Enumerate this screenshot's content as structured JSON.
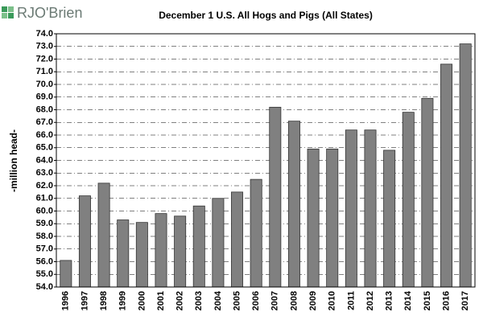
{
  "logo": "RJO'Brien",
  "chart_data": {
    "type": "bar",
    "title": "December 1 U.S. All Hogs and Pigs (All States)",
    "y_label": "-million head-",
    "categories": [
      "1996",
      "1997",
      "1998",
      "1999",
      "2000",
      "2001",
      "2002",
      "2003",
      "2004",
      "2005",
      "2006",
      "2007",
      "2008",
      "2009",
      "2010",
      "2011",
      "2012",
      "2013",
      "2014",
      "2015",
      "2016",
      "2017"
    ],
    "values": [
      56.1,
      61.2,
      62.2,
      59.3,
      59.1,
      59.8,
      59.6,
      60.4,
      61.0,
      61.5,
      62.5,
      68.2,
      67.1,
      64.9,
      64.9,
      66.4,
      66.4,
      64.8,
      67.8,
      68.9,
      71.6,
      73.2
    ],
    "color": "#808080",
    "ylim": [
      54,
      74
    ],
    "yticks": [
      {
        "value": 54,
        "label": "54.0"
      },
      {
        "value": 55,
        "label": "55.0"
      },
      {
        "value": 56,
        "label": "56.0"
      },
      {
        "value": 57,
        "label": "57.0"
      },
      {
        "value": 58,
        "label": "58.0"
      },
      {
        "value": 59,
        "label": "59.0"
      },
      {
        "value": 60,
        "label": "60.0"
      },
      {
        "value": 61,
        "label": "61.0"
      },
      {
        "value": 62,
        "label": "62.0"
      },
      {
        "value": 63,
        "label": "63.0"
      },
      {
        "value": 64,
        "label": "64.0"
      },
      {
        "value": 65,
        "label": "65.0"
      },
      {
        "value": 66,
        "label": "66.0"
      },
      {
        "value": 67,
        "label": "67.0"
      },
      {
        "value": 68,
        "label": "68.0"
      },
      {
        "value": 69,
        "label": "69.0"
      },
      {
        "value": 70,
        "label": "70.0"
      },
      {
        "value": 71,
        "label": "71.0"
      },
      {
        "value": 72,
        "label": "72.0"
      },
      {
        "value": 73,
        "label": "73.0"
      },
      {
        "value": 74,
        "label": "74.0"
      }
    ],
    "grid": true
  }
}
